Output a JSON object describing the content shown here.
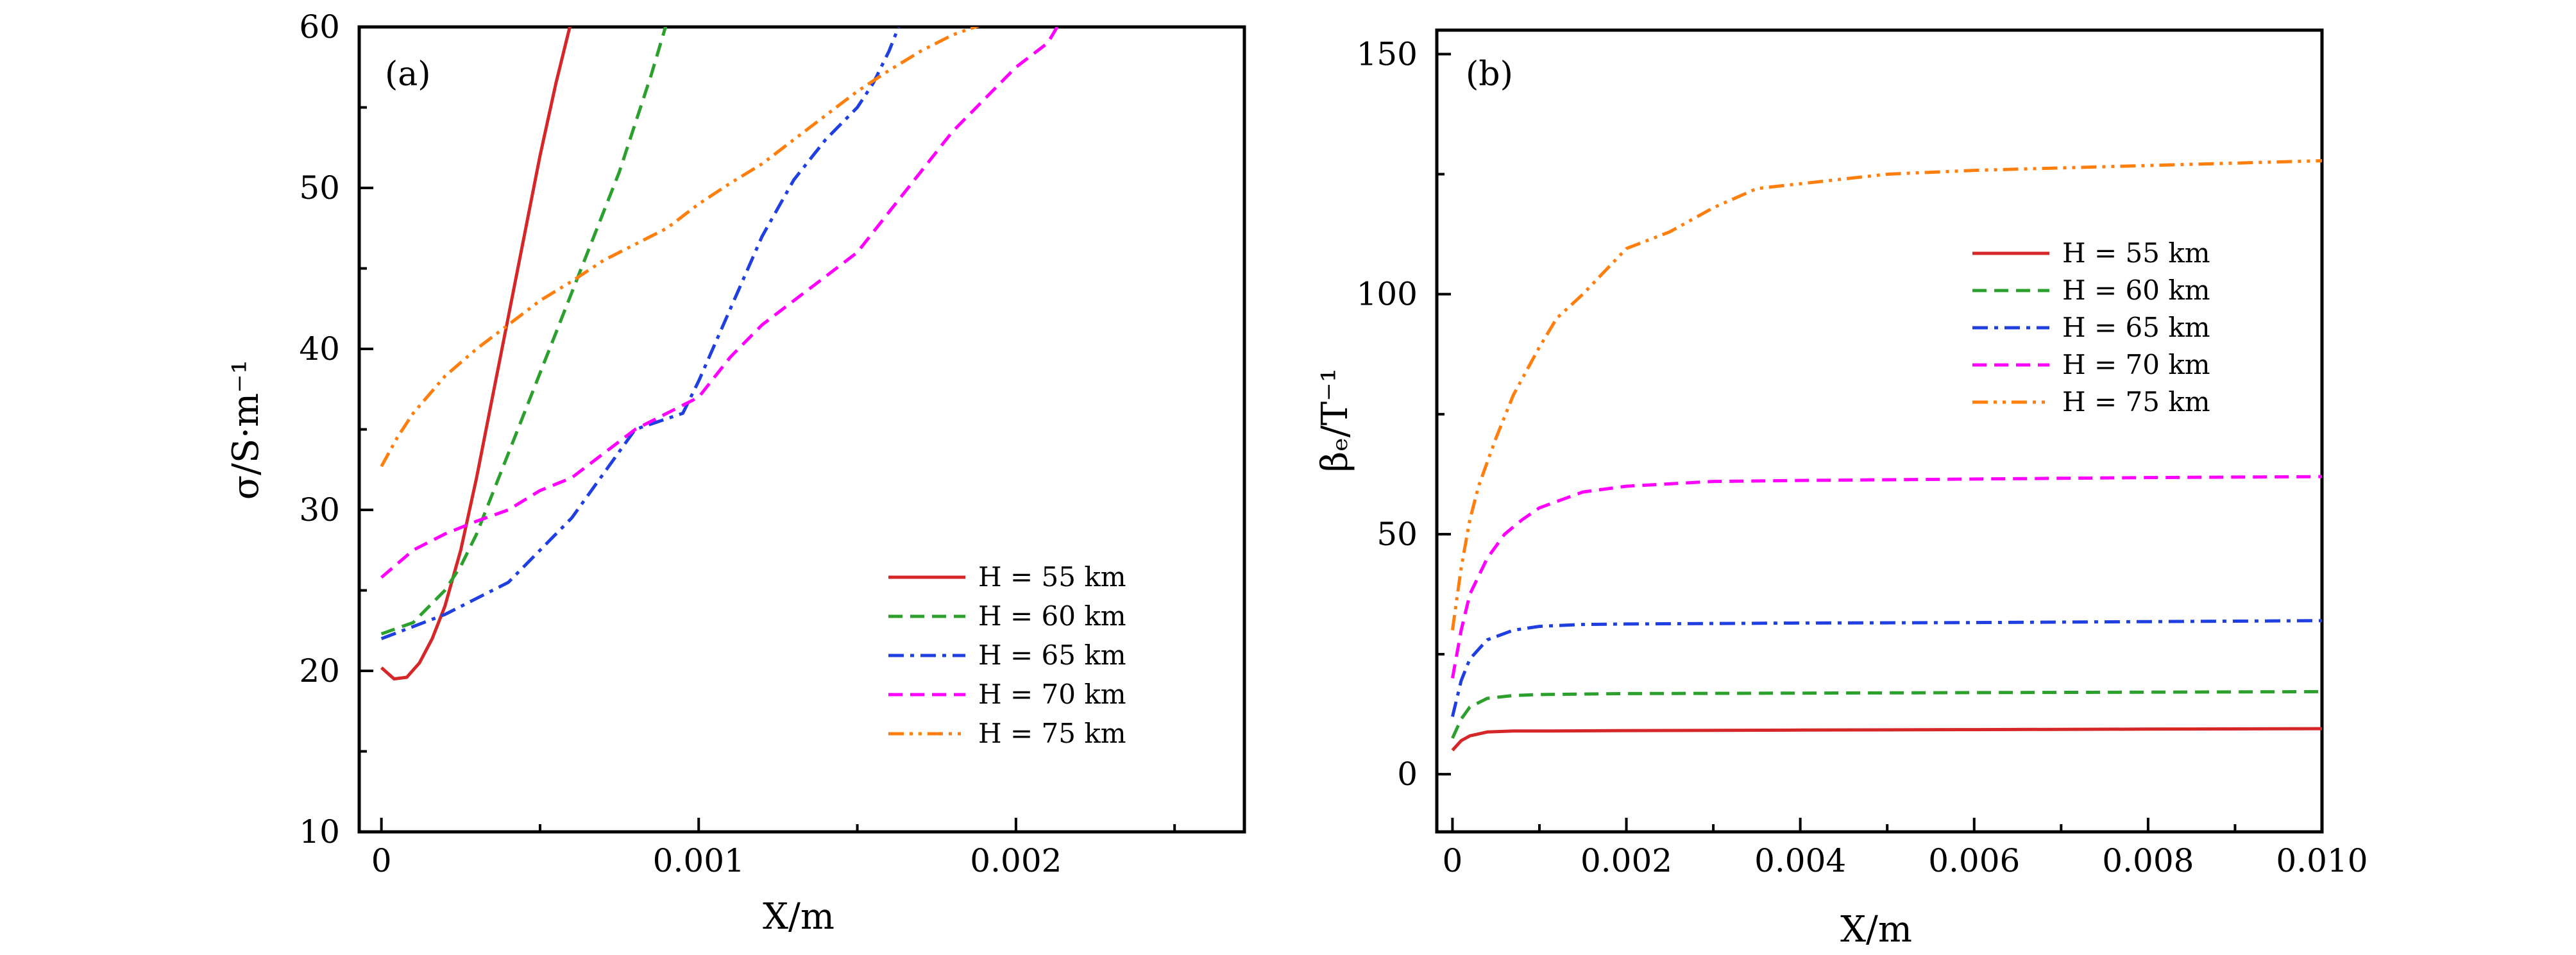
{
  "figure_panels": [
    {
      "panel_label": "(a)",
      "ylabel": "σ/S·m⁻¹",
      "xlabel": "X/m",
      "x_ticks": [
        "0",
        "0.001",
        "0.002"
      ],
      "y_ticks": [
        "10",
        "20",
        "30",
        "40",
        "50",
        "60"
      ]
    },
    {
      "panel_label": "(b)",
      "ylabel": "βₑ/T⁻¹",
      "xlabel": "X/m",
      "x_ticks": [
        "0",
        "0.002",
        "0.004",
        "0.006",
        "0.008",
        "0.010"
      ],
      "y_ticks": [
        "0",
        "50",
        "100",
        "150"
      ]
    }
  ],
  "chart_data": [
    {
      "type": "line",
      "panel_label": "(a)",
      "xlabel": "X/m",
      "ylabel": "σ/S·m⁻¹",
      "xlim": [
        -7e-05,
        0.00272
      ],
      "ylim": [
        10,
        60
      ],
      "grid": false,
      "legend_position": "lower-right",
      "series": [
        {
          "name": "H = 55 km",
          "color": "#d62728",
          "dash": "solid",
          "x": [
            0,
            4e-05,
            8e-05,
            0.00012,
            0.00016,
            0.0002,
            0.00025,
            0.0003,
            0.00035,
            0.0004,
            0.00045,
            0.0005,
            0.00055,
            0.0006
          ],
          "y": [
            20.2,
            19.5,
            19.6,
            20.5,
            22.0,
            24.0,
            27.5,
            32.0,
            37.0,
            42.0,
            47.0,
            52.0,
            56.5,
            60.5
          ]
        },
        {
          "name": "H = 60 km",
          "color": "#2ca02c",
          "dash": "dashed",
          "x": [
            0,
            0.0001,
            0.00015,
            0.0002,
            0.00025,
            0.0003,
            0.00035,
            0.0004,
            0.00045,
            0.0005,
            0.00055,
            0.0006,
            0.00065,
            0.0007,
            0.00075,
            0.0008,
            0.00085,
            0.0009
          ],
          "y": [
            22.3,
            23.0,
            24.0,
            25.0,
            26.5,
            28.5,
            31.0,
            33.5,
            36.0,
            38.5,
            41.0,
            43.5,
            46.0,
            48.5,
            51.0,
            54.0,
            57.0,
            60.3
          ]
        },
        {
          "name": "H = 65 km",
          "color": "#1f3fe0",
          "dash": "dashdot",
          "x": [
            0,
            0.0002,
            0.0004,
            0.0006,
            0.0008,
            0.00095,
            0.001,
            0.0011,
            0.0012,
            0.0013,
            0.0014,
            0.0015,
            0.00155,
            0.0016,
            0.00163
          ],
          "y": [
            22.0,
            23.5,
            25.5,
            29.5,
            35.0,
            36.0,
            38.0,
            42.5,
            47.0,
            50.5,
            53.0,
            55.0,
            56.5,
            58.5,
            60.0
          ]
        },
        {
          "name": "H = 70 km",
          "color": "#ff00ff",
          "dash": "dashed",
          "x": [
            0,
            0.0001,
            0.0002,
            0.0003,
            0.0004,
            0.0005,
            0.0006,
            0.0007,
            0.0008,
            0.0009,
            0.001,
            0.0011,
            0.0012,
            0.0013,
            0.0014,
            0.0015,
            0.0016,
            0.0017,
            0.0018,
            0.0019,
            0.002,
            0.0021,
            0.00213
          ],
          "y": [
            25.8,
            27.5,
            28.5,
            29.3,
            30.0,
            31.2,
            32.0,
            33.5,
            35.0,
            36.0,
            37.0,
            39.5,
            41.5,
            43.0,
            44.5,
            46.0,
            48.5,
            51.0,
            53.5,
            55.5,
            57.5,
            59.0,
            60.0
          ]
        },
        {
          "name": "H = 75 km",
          "color": "#ff7f0e",
          "dash": "dashdotdot",
          "x": [
            0,
            5e-05,
            0.0001,
            0.0002,
            0.0003,
            0.0004,
            0.0005,
            0.0006,
            0.0007,
            0.0008,
            0.0009,
            0.001,
            0.0011,
            0.0012,
            0.0013,
            0.0014,
            0.0015,
            0.0016,
            0.0017,
            0.0018,
            0.0019
          ],
          "y": [
            32.7,
            34.5,
            36.0,
            38.3,
            40.0,
            41.5,
            43.0,
            44.2,
            45.5,
            46.5,
            47.5,
            49.0,
            50.3,
            51.5,
            53.0,
            54.5,
            56.0,
            57.3,
            58.5,
            59.5,
            60.2
          ]
        }
      ]
    },
    {
      "type": "line",
      "panel_label": "(b)",
      "xlabel": "X/m",
      "ylabel": "βₑ/T⁻¹",
      "xlim": [
        -0.00018,
        0.01
      ],
      "ylim": [
        -12,
        155
      ],
      "grid": false,
      "legend_position": "upper-right",
      "series": [
        {
          "name": "H = 55 km",
          "color": "#d62728",
          "dash": "solid",
          "x": [
            0,
            0.0001,
            0.0002,
            0.0004,
            0.0007,
            0.001,
            0.002,
            0.004,
            0.006,
            0.008,
            0.01
          ],
          "y": [
            5.0,
            7.0,
            8.0,
            8.8,
            9.0,
            9.0,
            9.1,
            9.2,
            9.3,
            9.4,
            9.5
          ]
        },
        {
          "name": "H = 60 km",
          "color": "#2ca02c",
          "dash": "dashed",
          "x": [
            0,
            0.0001,
            0.0002,
            0.0004,
            0.0007,
            0.001,
            0.002,
            0.004,
            0.006,
            0.008,
            0.01
          ],
          "y": [
            7.5,
            11.5,
            14.0,
            15.8,
            16.4,
            16.6,
            16.8,
            16.9,
            17.0,
            17.1,
            17.2
          ]
        },
        {
          "name": "H = 65 km",
          "color": "#1f3fe0",
          "dash": "dashdot",
          "x": [
            0,
            0.0001,
            0.0002,
            0.0004,
            0.0007,
            0.001,
            0.0015,
            0.002,
            0.004,
            0.006,
            0.008,
            0.01
          ],
          "y": [
            12.0,
            19.5,
            24.0,
            28.0,
            30.0,
            30.8,
            31.2,
            31.3,
            31.5,
            31.6,
            31.8,
            32.0
          ]
        },
        {
          "name": "H = 70 km",
          "color": "#ff00ff",
          "dash": "dashed",
          "x": [
            0,
            0.0001,
            0.0002,
            0.0004,
            0.0006,
            0.0008,
            0.001,
            0.0015,
            0.002,
            0.003,
            0.004,
            0.006,
            0.008,
            0.01
          ],
          "y": [
            20.0,
            30.0,
            37.5,
            45.0,
            50.0,
            53.0,
            55.5,
            58.8,
            60.0,
            61.0,
            61.2,
            61.5,
            61.8,
            62.0
          ]
        },
        {
          "name": "H = 75 km",
          "color": "#ff7f0e",
          "dash": "dashdotdot",
          "x": [
            0,
            0.0001,
            0.0002,
            0.0003,
            0.0005,
            0.0007,
            0.001,
            0.0012,
            0.0015,
            0.002,
            0.0025,
            0.003,
            0.0035,
            0.004,
            0.005,
            0.006,
            0.007,
            0.008,
            0.009,
            0.01
          ],
          "y": [
            30.0,
            43.0,
            53.0,
            60.0,
            70.0,
            79.0,
            89.0,
            95.0,
            100.0,
            109.5,
            113.0,
            118.0,
            122.0,
            123.0,
            125.0,
            125.8,
            126.3,
            126.8,
            127.3,
            127.8
          ]
        }
      ]
    }
  ]
}
